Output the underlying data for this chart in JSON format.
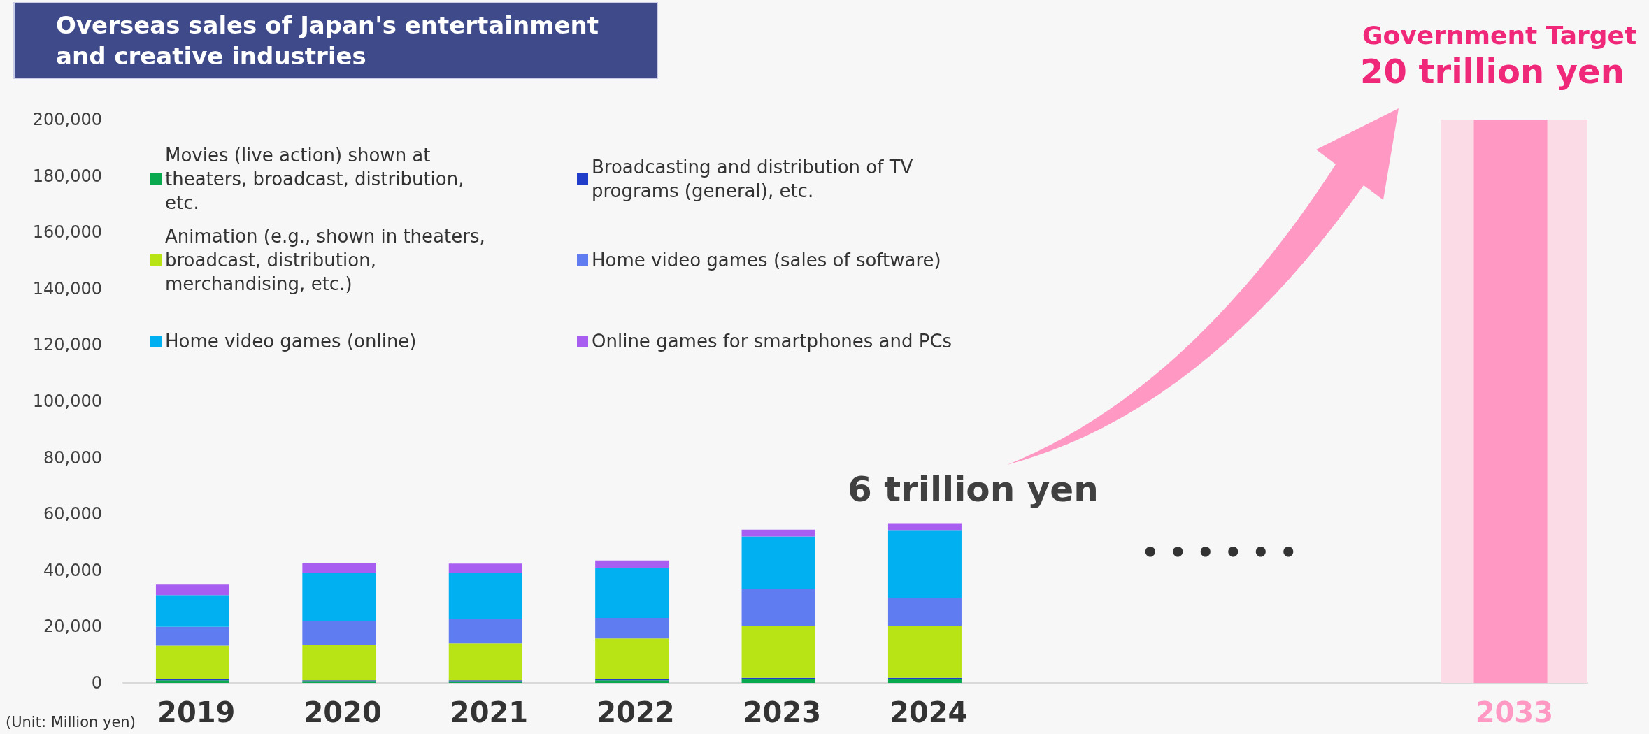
{
  "chart_data": {
    "type": "bar",
    "title": "Overseas sales of Japan's entertainment and creative industries",
    "stacked": true,
    "categories": [
      "2019",
      "2020",
      "2021",
      "2022",
      "2023",
      "2024",
      null,
      null,
      null,
      "2033"
    ],
    "series": [
      {
        "name": "Movies (live action) shown at theaters, broadcast, distribution, etc.",
        "color": "#0aa84f",
        "values": [
          900,
          700,
          600,
          900,
          1400,
          1400,
          null,
          null,
          null,
          null
        ]
      },
      {
        "name": "Broadcasting and distribution of TV programs (general), etc.",
        "color": "#1f3dc8",
        "values": [
          400,
          200,
          300,
          400,
          400,
          400,
          null,
          null,
          null,
          null
        ]
      },
      {
        "name": "Animation (e.g., shown in theaters, broadcast, distribution, merchandising, etc.)",
        "color": "#b8e314",
        "values": [
          12000,
          12500,
          13200,
          14500,
          18400,
          18400,
          null,
          null,
          null,
          null
        ]
      },
      {
        "name": "Home video games (sales of software)",
        "color": "#5f7cf0",
        "values": [
          6600,
          8700,
          8500,
          7300,
          13100,
          9900,
          null,
          null,
          null,
          null
        ]
      },
      {
        "name": "Home video games (online)",
        "color": "#00b0f0",
        "values": [
          11300,
          16900,
          16600,
          17700,
          18700,
          24200,
          null,
          null,
          null,
          null
        ]
      },
      {
        "name": "Online games for smartphones and PCs",
        "color": "#a95ef2",
        "values": [
          3700,
          3700,
          3200,
          2700,
          2400,
          2400,
          null,
          null,
          null,
          null
        ]
      },
      {
        "color": "#ff99c4",
        "values": [
          null,
          null,
          null,
          null,
          null,
          null,
          null,
          null,
          null,
          200000
        ]
      }
    ],
    "ylim": [
      0,
      200000
    ],
    "yticks": [
      0,
      {
        "value": 20000,
        "label": "20,000"
      },
      {
        "value": 40000,
        "label": "40,000"
      },
      {
        "value": 60000,
        "label": "60,000"
      },
      {
        "value": 80000,
        "label": "80,000"
      },
      {
        "value": 100000,
        "label": "100,000"
      },
      {
        "value": 120000,
        "label": "120,000"
      },
      {
        "value": 140000,
        "label": "140,000"
      },
      {
        "value": 160000,
        "label": "160,000"
      },
      {
        "value": 180000,
        "label": "180,000"
      },
      {
        "value": 200000,
        "label": "200,000"
      }
    ],
    "grid": false,
    "legend": "top left",
    "bands": [
      {
        "axis": "x",
        "from": "2033",
        "to": "2033",
        "color": "#fadbe6"
      }
    ],
    "annotations": [
      "(Unit: Million yen)",
      "6 trillion yen",
      "• • • • • •",
      "Government Target",
      "20 trillion yen"
    ]
  }
}
